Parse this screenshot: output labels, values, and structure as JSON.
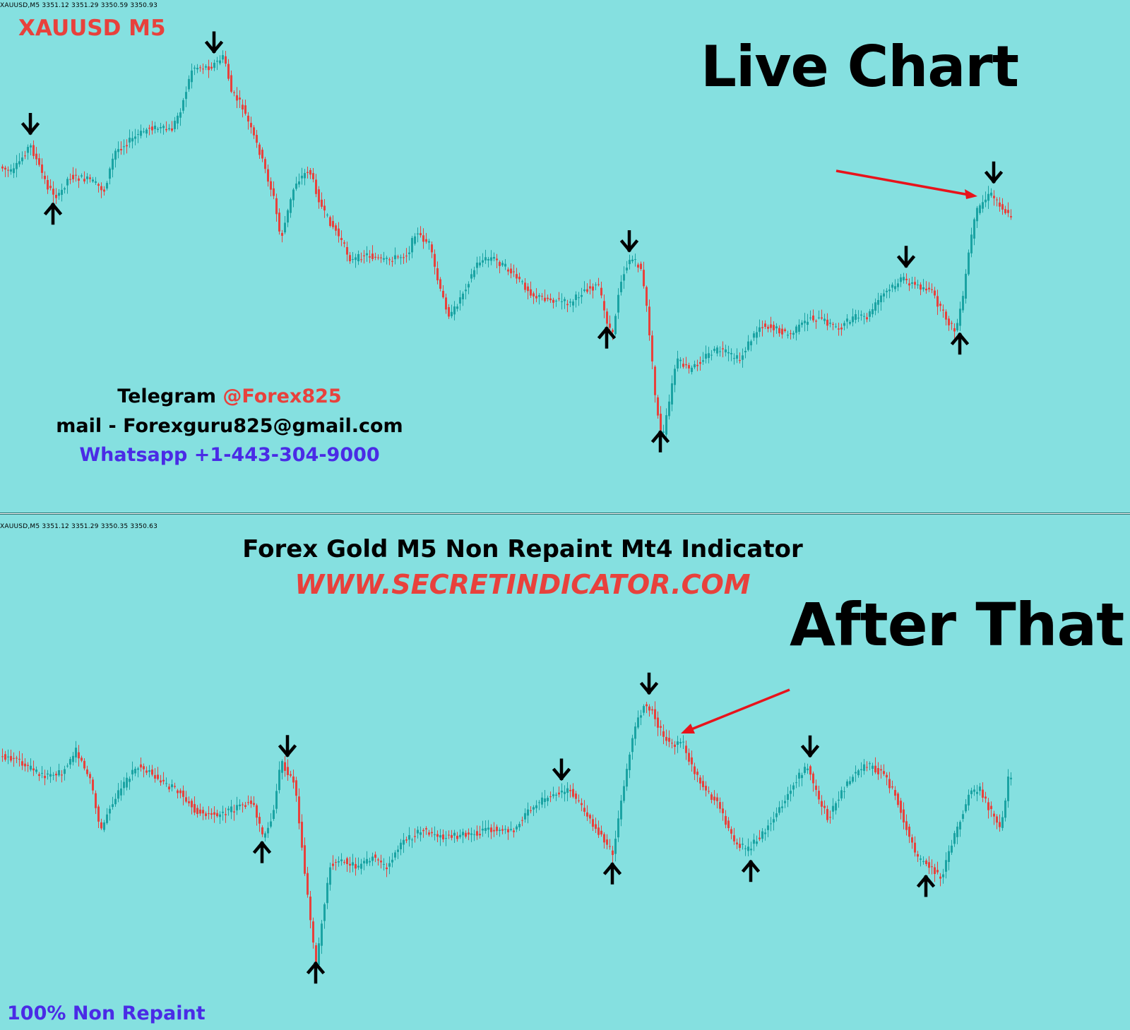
{
  "colors": {
    "background": "#85e0e0",
    "bull_candle": "#1aa3a3",
    "bear_candle": "#e8413c",
    "signal_arrow": "#000000",
    "pointer_arrow": "#e8131b",
    "symbol_red": "#e8413c",
    "whatsapp_purple": "#4a2be6"
  },
  "top_chart": {
    "ohlc_header": "XAUUSD,M5  3351.12 3351.29 3350.59 3350.93",
    "symbol_label": "XAUUSD M5",
    "title": "Live Chart",
    "contact": {
      "telegram_prefix": "Telegram ",
      "telegram_handle": "@Forex825",
      "mail": "mail - Forexguru825@gmail.com",
      "whatsapp": "Whatsapp +1-443-304-9000"
    },
    "pointer_arrow_icon": "red-pointer-arrow-icon"
  },
  "bottom_chart": {
    "ohlc_header": "XAUUSD,M5  3351.12 3351.29 3350.35 3350.63",
    "headline": "Forex Gold M5 Non Repaint Mt4 Indicator",
    "website": "WWW.SECRETINDICATOR.COM",
    "title": "After That",
    "footer_label": "100% Non Repaint",
    "pointer_arrow_icon": "red-pointer-arrow-icon"
  },
  "chart_data": [
    {
      "type": "candlestick",
      "symbol": "XAUUSD",
      "timeframe": "M5",
      "title": "Live Chart",
      "xlabel": "",
      "ylabel": "",
      "grid": false,
      "last_bar": {
        "open": 3351.12,
        "high": 3351.29,
        "low": 3350.59,
        "close": 3350.93
      },
      "signals": [
        {
          "type": "sell",
          "bar": 10
        },
        {
          "type": "buy",
          "bar": 18
        },
        {
          "type": "sell",
          "bar": 75
        },
        {
          "type": "sell",
          "bar": 222
        },
        {
          "type": "buy",
          "bar": 214
        },
        {
          "type": "buy",
          "bar": 233
        },
        {
          "type": "sell",
          "bar": 320
        },
        {
          "type": "buy",
          "bar": 339
        },
        {
          "type": "sell",
          "bar": 351
        }
      ]
    },
    {
      "type": "candlestick",
      "symbol": "XAUUSD",
      "timeframe": "M5",
      "title": "After That",
      "xlabel": "",
      "ylabel": "",
      "grid": false,
      "last_bar": {
        "open": 3351.12,
        "high": 3351.29,
        "low": 3350.35,
        "close": 3350.63
      },
      "signals": [
        {
          "type": "sell",
          "bar": 101
        },
        {
          "type": "buy",
          "bar": 92
        },
        {
          "type": "buy",
          "bar": 111
        },
        {
          "type": "sell",
          "bar": 198
        },
        {
          "type": "buy",
          "bar": 216
        },
        {
          "type": "sell",
          "bar": 229
        },
        {
          "type": "buy",
          "bar": 265
        },
        {
          "type": "sell",
          "bar": 286
        },
        {
          "type": "buy",
          "bar": 327
        }
      ]
    }
  ]
}
